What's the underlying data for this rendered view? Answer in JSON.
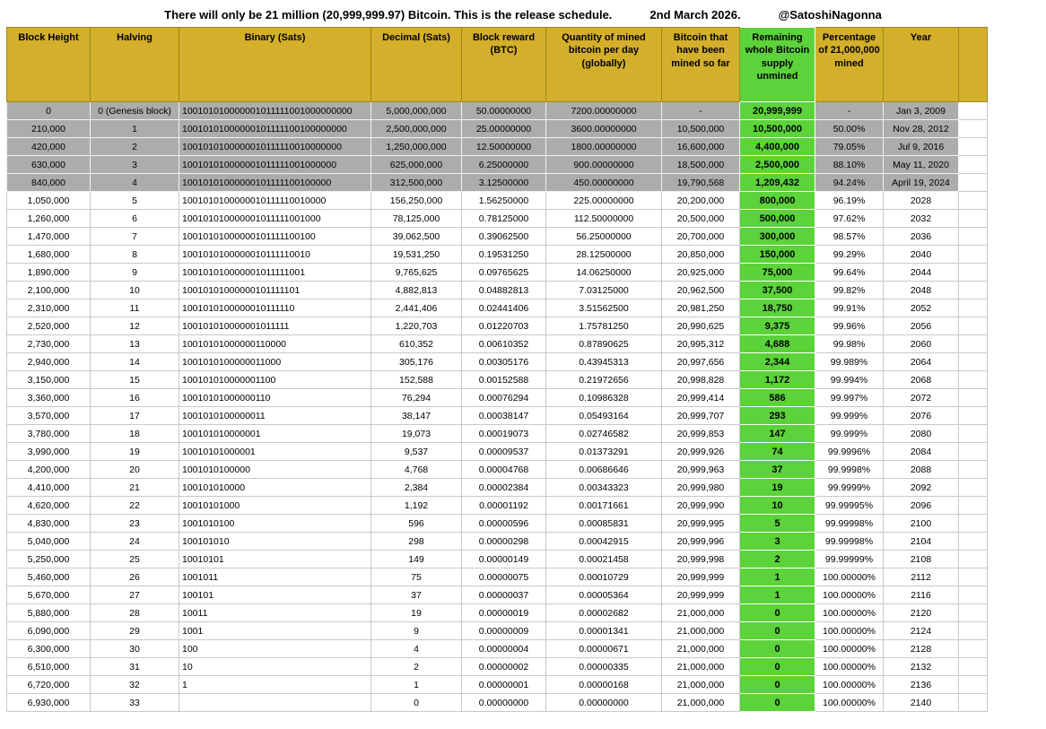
{
  "title_bar": {
    "statement": "There will only be 21 million (20,999,999.97) Bitcoin. This is the release schedule.",
    "date": "2nd March 2026.",
    "handle": "@SatoshiNagonna"
  },
  "colors": {
    "header_gold": "#D3AF2C",
    "supply_green": "#5CD33A",
    "gray_row": "#ACACAC",
    "row_border": "#C9C9C9"
  },
  "chart_data": {
    "type": "table",
    "title": "There will only be 21 million (20,999,999.97) Bitcoin. This is the release schedule.",
    "gray_row_count": 5,
    "columns": [
      "Block Height",
      "Halving",
      "Binary (Sats)",
      "Decimal (Sats)",
      "Block reward (BTC)",
      "Quantity of mined bitcoin per day (globally)",
      "Bitcoin that have been mined so far",
      "Remaining whole Bitcoin supply unmined",
      "Percentage of 21,000,000 mined",
      "Year"
    ],
    "rows": [
      [
        "0",
        "0 (Genesis block)",
        "100101010000001011111001000000000",
        "5,000,000,000",
        "50.00000000",
        "7200.00000000",
        "-",
        "20,999,999",
        "-",
        "Jan 3, 2009"
      ],
      [
        "210,000",
        "1",
        "10010101000000101111100100000000",
        "2,500,000,000",
        "25.00000000",
        "3600.00000000",
        "10,500,000",
        "10,500,000",
        "50.00%",
        "Nov 28, 2012"
      ],
      [
        "420,000",
        "2",
        "1001010100000010111110010000000",
        "1,250,000,000",
        "12.50000000",
        "1800.00000000",
        "16,600,000",
        "4,400,000",
        "79.05%",
        "Jul 9, 2016"
      ],
      [
        "630,000",
        "3",
        "100101010000001011111001000000",
        "625,000,000",
        "6.25000000",
        "900.00000000",
        "18,500,000",
        "2,500,000",
        "88.10%",
        "May 11, 2020"
      ],
      [
        "840,000",
        "4",
        "10010101000000101111100100000",
        "312,500,000",
        "3.12500000",
        "450.00000000",
        "19,790,568",
        "1,209,432",
        "94.24%",
        "April 19, 2024"
      ],
      [
        "1,050,000",
        "5",
        "1001010100000010111110010000",
        "156,250,000",
        "1.56250000",
        "225.00000000",
        "20,200,000",
        "800,000",
        "96.19%",
        "2028"
      ],
      [
        "1,260,000",
        "6",
        "100101010000001011111001000",
        "78,125,000",
        "0.78125000",
        "112.50000000",
        "20,500,000",
        "500,000",
        "97.62%",
        "2032"
      ],
      [
        "1,470,000",
        "7",
        "10010101000000101111100100",
        "39,062,500",
        "0.39062500",
        "56.25000000",
        "20,700,000",
        "300,000",
        "98.57%",
        "2036"
      ],
      [
        "1,680,000",
        "8",
        "1001010100000010111110010",
        "19,531,250",
        "0.19531250",
        "28.12500000",
        "20,850,000",
        "150,000",
        "99.29%",
        "2040"
      ],
      [
        "1,890,000",
        "9",
        "100101010000001011111001",
        "9,765,625",
        "0.09765625",
        "14.06250000",
        "20,925,000",
        "75,000",
        "99.64%",
        "2044"
      ],
      [
        "2,100,000",
        "10",
        "10010101000000101111101",
        "4,882,813",
        "0.04882813",
        "7.03125000",
        "20,962,500",
        "37,500",
        "99.82%",
        "2048"
      ],
      [
        "2,310,000",
        "11",
        "1001010100000010111110",
        "2,441,406",
        "0.02441406",
        "3.51562500",
        "20,981,250",
        "18,750",
        "99.91%",
        "2052"
      ],
      [
        "2,520,000",
        "12",
        "100101010000001011111",
        "1,220,703",
        "0.01220703",
        "1.75781250",
        "20,990,625",
        "9,375",
        "99.96%",
        "2056"
      ],
      [
        "2,730,000",
        "13",
        "10010101000000110000",
        "610,352",
        "0.00610352",
        "0.87890625",
        "20,995,312",
        "4,688",
        "99.98%",
        "2060"
      ],
      [
        "2,940,000",
        "14",
        "1001010100000011000",
        "305,176",
        "0.00305176",
        "0.43945313",
        "20,997,656",
        "2,344",
        "99.989%",
        "2064"
      ],
      [
        "3,150,000",
        "15",
        "100101010000001100",
        "152,588",
        "0.00152588",
        "0.21972656",
        "20,998,828",
        "1,172",
        "99.994%",
        "2068"
      ],
      [
        "3,360,000",
        "16",
        "10010101000000110",
        "76,294",
        "0.00076294",
        "0.10986328",
        "20,999,414",
        "586",
        "99.997%",
        "2072"
      ],
      [
        "3,570,000",
        "17",
        "1001010100000011",
        "38,147",
        "0.00038147",
        "0.05493164",
        "20,999,707",
        "293",
        "99.999%",
        "2076"
      ],
      [
        "3,780,000",
        "18",
        "100101010000001",
        "19,073",
        "0.00019073",
        "0.02746582",
        "20,999,853",
        "147",
        "99.999%",
        "2080"
      ],
      [
        "3,990,000",
        "19",
        "10010101000001",
        "9,537",
        "0.00009537",
        "0.01373291",
        "20,999,926",
        "74",
        "99.9996%",
        "2084"
      ],
      [
        "4,200,000",
        "20",
        "1001010100000",
        "4,768",
        "0.00004768",
        "0.00686646",
        "20,999,963",
        "37",
        "99.9998%",
        "2088"
      ],
      [
        "4,410,000",
        "21",
        "100101010000",
        "2,384",
        "0.00002384",
        "0.00343323",
        "20,999,980",
        "19",
        "99.9999%",
        "2092"
      ],
      [
        "4,620,000",
        "22",
        "10010101000",
        "1,192",
        "0.00001192",
        "0.00171661",
        "20,999,990",
        "10",
        "99.99995%",
        "2096"
      ],
      [
        "4,830,000",
        "23",
        "1001010100",
        "596",
        "0.00000596",
        "0.00085831",
        "20,999,995",
        "5",
        "99.99998%",
        "2100"
      ],
      [
        "5,040,000",
        "24",
        "100101010",
        "298",
        "0.00000298",
        "0.00042915",
        "20,999,996",
        "3",
        "99.99998%",
        "2104"
      ],
      [
        "5,250,000",
        "25",
        "10010101",
        "149",
        "0.00000149",
        "0.00021458",
        "20,999,998",
        "2",
        "99.99999%",
        "2108"
      ],
      [
        "5,460,000",
        "26",
        "1001011",
        "75",
        "0.00000075",
        "0.00010729",
        "20,999,999",
        "1",
        "100.00000%",
        "2112"
      ],
      [
        "5,670,000",
        "27",
        "100101",
        "37",
        "0.00000037",
        "0.00005364",
        "20,999,999",
        "1",
        "100.00000%",
        "2116"
      ],
      [
        "5,880,000",
        "28",
        "10011",
        "19",
        "0.00000019",
        "0.00002682",
        "21,000,000",
        "0",
        "100.00000%",
        "2120"
      ],
      [
        "6,090,000",
        "29",
        "1001",
        "9",
        "0.00000009",
        "0.00001341",
        "21,000,000",
        "0",
        "100.00000%",
        "2124"
      ],
      [
        "6,300,000",
        "30",
        "100",
        "4",
        "0.00000004",
        "0.00000671",
        "21,000,000",
        "0",
        "100.00000%",
        "2128"
      ],
      [
        "6,510,000",
        "31",
        "10",
        "2",
        "0.00000002",
        "0.00000335",
        "21,000,000",
        "0",
        "100.00000%",
        "2132"
      ],
      [
        "6,720,000",
        "32",
        "1",
        "1",
        "0.00000001",
        "0.00000168",
        "21,000,000",
        "0",
        "100.00000%",
        "2136"
      ],
      [
        "6,930,000",
        "33",
        "",
        "0",
        "0.00000000",
        "0.00000000",
        "21,000,000",
        "0",
        "100.00000%",
        "2140"
      ]
    ]
  }
}
